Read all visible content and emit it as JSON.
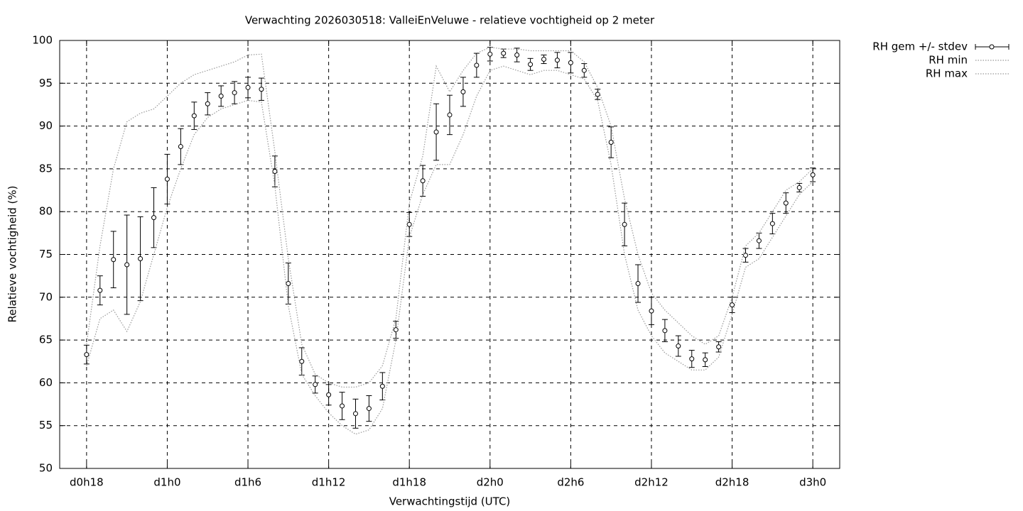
{
  "chart_data": {
    "type": "errorbar",
    "title": "Verwachting 2026030518: ValleiEnVeluwe - relatieve vochtigheid op 2 meter",
    "x_label": "Verwachtingstijd (UTC)",
    "y_label": "Relatieve vochtigheid (%)",
    "xlim": [
      16,
      74
    ],
    "ylim": [
      50,
      100
    ],
    "xticks": [
      {
        "value": 18,
        "label": "d0h18"
      },
      {
        "value": 24,
        "label": "d1h0"
      },
      {
        "value": 30,
        "label": "d1h6"
      },
      {
        "value": 36,
        "label": "d1h12"
      },
      {
        "value": 42,
        "label": "d1h18"
      },
      {
        "value": 48,
        "label": "d2h0"
      },
      {
        "value": 54,
        "label": "d2h6"
      },
      {
        "value": 60,
        "label": "d2h12"
      },
      {
        "value": 66,
        "label": "d2h18"
      },
      {
        "value": 72,
        "label": "d3h0"
      }
    ],
    "yticks": [
      50,
      55,
      60,
      65,
      70,
      75,
      80,
      85,
      90,
      95,
      100
    ],
    "grid": true,
    "legend": "outside-top-right",
    "x": [
      18,
      19,
      20,
      21,
      22,
      23,
      24,
      25,
      26,
      27,
      28,
      29,
      30,
      31,
      32,
      33,
      34,
      35,
      36,
      37,
      38,
      39,
      40,
      41,
      42,
      43,
      44,
      45,
      46,
      47,
      48,
      49,
      50,
      51,
      52,
      53,
      54,
      55,
      56,
      57,
      58,
      59,
      60,
      61,
      62,
      63,
      64,
      65,
      66,
      67,
      68,
      69,
      70,
      71,
      72
    ],
    "series": [
      {
        "name": "RH gem +/- stdev",
        "color": "#000000",
        "style": "errorbar",
        "values": [
          63.3,
          70.8,
          74.4,
          73.8,
          74.5,
          79.3,
          83.8,
          87.6,
          91.2,
          92.6,
          93.5,
          93.9,
          94.5,
          94.3,
          84.7,
          71.6,
          62.5,
          59.8,
          58.6,
          57.3,
          56.4,
          57.0,
          59.6,
          66.2,
          78.5,
          83.6,
          89.3,
          91.3,
          94.0,
          97.1,
          98.4,
          98.5,
          98.3,
          97.2,
          97.8,
          97.7,
          97.4,
          96.5,
          93.7,
          88.1,
          78.5,
          71.6,
          68.4,
          66.1,
          64.3,
          62.8,
          62.7,
          64.2,
          69.1,
          74.9,
          76.6,
          78.6,
          81.0,
          82.8,
          84.3
        ],
        "errors": [
          1.1,
          1.7,
          3.3,
          5.8,
          4.9,
          3.5,
          2.9,
          2.1,
          1.6,
          1.3,
          1.2,
          1.3,
          1.2,
          1.3,
          1.8,
          2.4,
          1.6,
          1.0,
          1.2,
          1.6,
          1.7,
          1.5,
          1.6,
          1.0,
          1.4,
          1.8,
          3.3,
          2.3,
          1.7,
          1.4,
          0.8,
          0.5,
          0.8,
          0.7,
          0.5,
          0.9,
          1.2,
          0.8,
          0.6,
          1.8,
          2.5,
          2.2,
          1.6,
          1.3,
          1.2,
          1.0,
          0.8,
          0.6,
          0.9,
          0.8,
          0.9,
          1.2,
          1.2,
          0.5,
          0.8
        ]
      },
      {
        "name": "RH min",
        "color": "#999999",
        "style": "dotted",
        "values": [
          62.0,
          67.5,
          68.5,
          66.0,
          69.5,
          75.0,
          80.5,
          85.0,
          89.0,
          91.0,
          92.0,
          92.5,
          93.0,
          92.8,
          83.0,
          69.0,
          61.0,
          58.5,
          56.5,
          55.0,
          54.0,
          54.5,
          57.0,
          65.0,
          77.0,
          82.0,
          85.5,
          85.5,
          89.0,
          93.5,
          96.5,
          97.0,
          96.5,
          96.0,
          96.5,
          96.5,
          96.0,
          95.5,
          93.0,
          85.5,
          75.0,
          68.5,
          65.5,
          63.5,
          62.5,
          61.5,
          61.5,
          63.0,
          68.0,
          73.5,
          74.5,
          77.0,
          79.5,
          82.0,
          83.5
        ]
      },
      {
        "name": "RH max",
        "color": "#999999",
        "style": "dotted",
        "values": [
          64.5,
          76.0,
          85.0,
          90.5,
          91.5,
          92.0,
          93.5,
          95.0,
          96.0,
          96.5,
          97.0,
          97.5,
          98.3,
          98.4,
          87.0,
          74.5,
          64.5,
          61.0,
          60.0,
          59.5,
          59.5,
          60.0,
          62.0,
          67.5,
          81.0,
          86.5,
          97.0,
          94.0,
          96.5,
          98.5,
          99.2,
          99.0,
          99.0,
          98.8,
          98.8,
          98.8,
          98.8,
          97.5,
          94.5,
          90.0,
          81.5,
          75.0,
          70.5,
          68.5,
          67.0,
          65.5,
          64.5,
          65.5,
          70.0,
          76.0,
          77.5,
          80.0,
          82.5,
          83.5,
          85.0
        ]
      }
    ]
  }
}
